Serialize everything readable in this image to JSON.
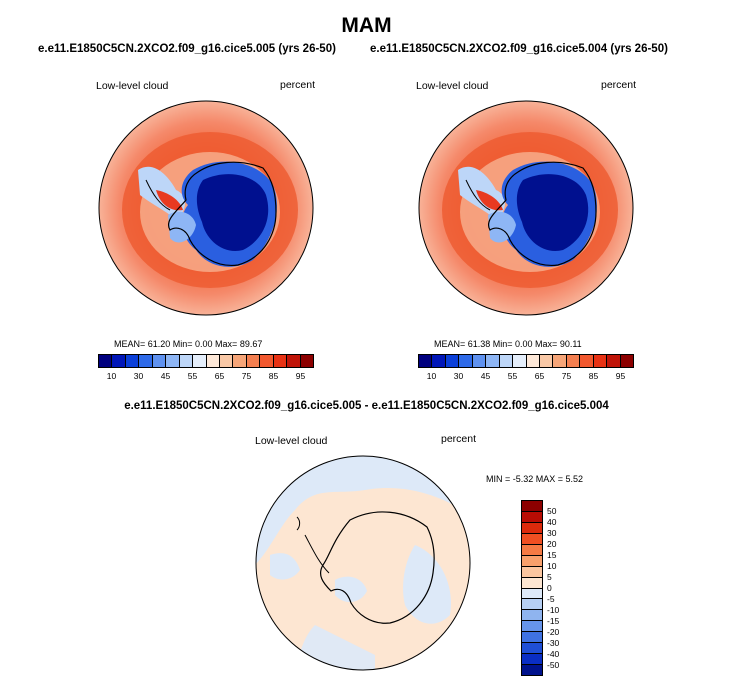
{
  "title": "MAM",
  "panels": [
    {
      "case_title": "e.e11.E1850C5CN.2XCO2.f09_g16.cice5.005 (yrs 26-50)",
      "variable": "Low-level cloud",
      "units": "percent",
      "stats": "MEAN=  61.20  Min=   0.00  Max=  89.67"
    },
    {
      "case_title": "e.e11.E1850C5CN.2XCO2.f09_g16.cice5.004 (yrs 26-50)",
      "variable": "Low-level cloud",
      "units": "percent",
      "stats": "MEAN=  61.38  Min=   0.00  Max=  90.11"
    }
  ],
  "abs_colorbar": {
    "colors": [
      "#00007f",
      "#0016b8",
      "#0a3fd9",
      "#2e6ae8",
      "#5f92f0",
      "#8eb6f5",
      "#bdd6f8",
      "#e4eefb",
      "#fde8d8",
      "#f9c8a6",
      "#f6a578",
      "#f47f50",
      "#f2582e",
      "#e83214",
      "#c01408",
      "#8c0000"
    ],
    "ticks": [
      "10",
      "30",
      "45",
      "55",
      "65",
      "75",
      "85",
      "95"
    ]
  },
  "diff_panel": {
    "title": "e.e11.E1850C5CN.2XCO2.f09_g16.cice5.005 - e.e11.E1850C5CN.2XCO2.f09_g16.cice5.004",
    "variable": "Low-level cloud",
    "units": "percent",
    "stats": "MIN =  -5.32 MAX =   5.52"
  },
  "diff_colorbar": {
    "colors": [
      "#8c0000",
      "#b80c04",
      "#dc2a0c",
      "#f04f22",
      "#f57a44",
      "#f8a06c",
      "#fbc6a0",
      "#fde6d2",
      "#dde9f8",
      "#b7d0f4",
      "#8fb4ef",
      "#6694ea",
      "#3f72e2",
      "#1f4fd6",
      "#0a2ec4",
      "#00128c"
    ],
    "ticks": [
      "50",
      "40",
      "30",
      "20",
      "15",
      "10",
      "5",
      "0",
      "-5",
      "-10",
      "-15",
      "-20",
      "-30",
      "-40",
      "-50"
    ]
  }
}
